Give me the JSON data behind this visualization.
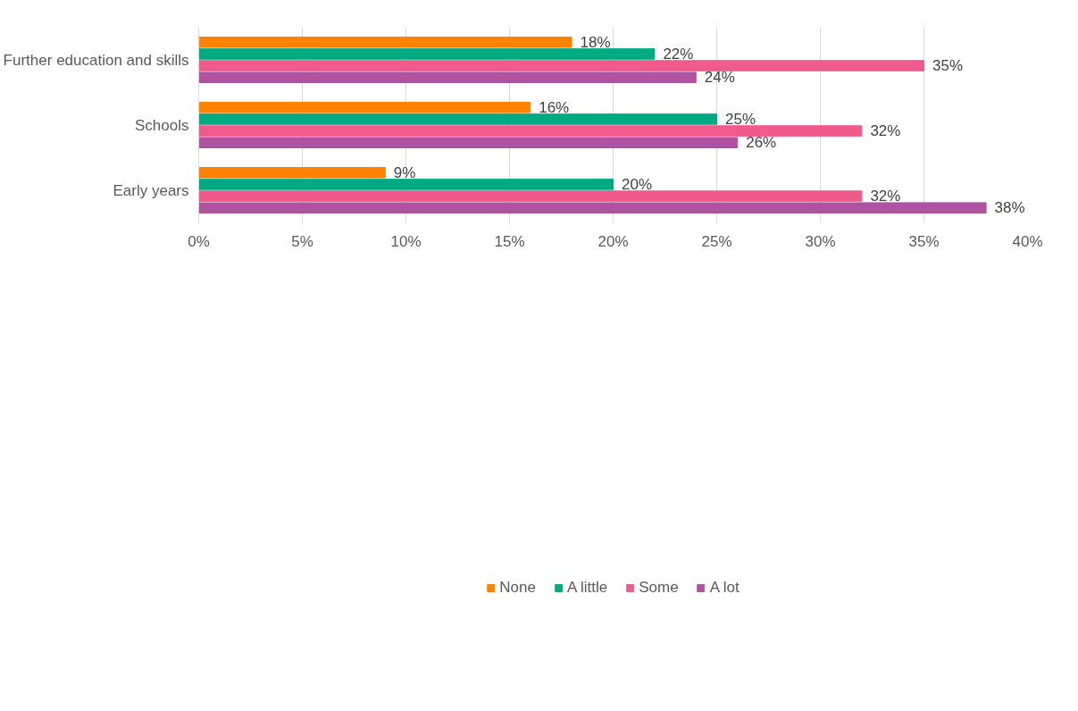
{
  "chart_data": {
    "type": "bar",
    "orientation": "horizontal",
    "categories": [
      "Further education and skills",
      "Schools",
      "Early years"
    ],
    "series": [
      {
        "name": "None",
        "color": "#ff8200",
        "values": [
          18,
          16,
          9
        ],
        "value_labels": [
          "18%",
          "16%",
          "9%"
        ]
      },
      {
        "name": "A little",
        "color": "#00ab84",
        "values": [
          22,
          25,
          20
        ],
        "value_labels": [
          "22%",
          "25%",
          "20%"
        ]
      },
      {
        "name": "Some",
        "color": "#f05a8c",
        "values": [
          35,
          32,
          32
        ],
        "value_labels": [
          "35%",
          "32%",
          "32%"
        ]
      },
      {
        "name": "A lot",
        "color": "#af52a0",
        "values": [
          24,
          26,
          38
        ],
        "value_labels": [
          "24%",
          "26%",
          "38%"
        ]
      }
    ],
    "xlim": [
      0,
      40
    ],
    "xticks": [
      {
        "value": 0,
        "label": "0%"
      },
      {
        "value": 5,
        "label": "5%"
      },
      {
        "value": 10,
        "label": "10%"
      },
      {
        "value": 15,
        "label": "15%"
      },
      {
        "value": 20,
        "label": "20%"
      },
      {
        "value": 25,
        "label": "25%"
      },
      {
        "value": 30,
        "label": "30%"
      },
      {
        "value": 35,
        "label": "35%"
      },
      {
        "value": 40,
        "label": "40%"
      }
    ],
    "grid": "x",
    "legend": "bottom"
  }
}
